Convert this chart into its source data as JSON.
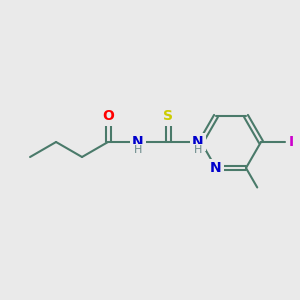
{
  "background_color": "#eaeaea",
  "bond_color": "#4a7a6a",
  "atom_colors": {
    "O": "#ff0000",
    "S": "#cccc00",
    "N": "#0000cc",
    "H": "#6a8a8a",
    "I": "#cc00cc"
  },
  "figsize": [
    3.0,
    3.0
  ],
  "dpi": 100
}
